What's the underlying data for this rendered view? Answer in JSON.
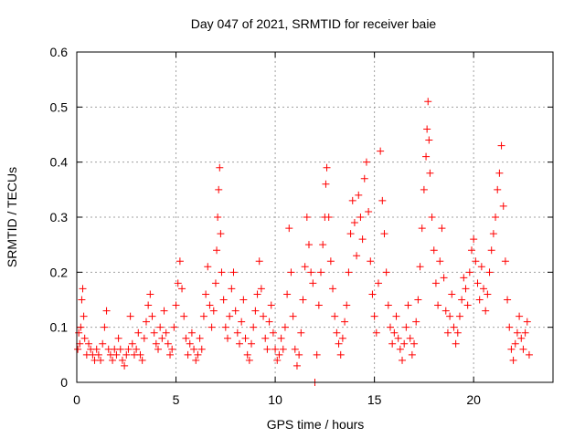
{
  "chart_data": {
    "type": "scatter",
    "title": "Day 047 of 2021, SRMTID for receiver baie",
    "xlabel": "GPS time / hours",
    "ylabel": "SRMTID / TECUs",
    "xlim": [
      0,
      24
    ],
    "ylim": [
      0,
      0.6
    ],
    "x_ticks": [
      0,
      5,
      10,
      15,
      20
    ],
    "x_tick_labels": [
      "0",
      "5",
      "10",
      "15",
      "20"
    ],
    "y_ticks": [
      0,
      0.1,
      0.2,
      0.3,
      0.4,
      0.5,
      0.6
    ],
    "y_tick_labels": [
      "0",
      "0.1",
      "0.2",
      "0.3",
      "0.4",
      "0.5",
      "0.6"
    ],
    "grid": true,
    "marker": "+",
    "series": [
      {
        "name": "SRMTID",
        "color": "#ff0000",
        "points": [
          [
            0.05,
            0.06
          ],
          [
            0.1,
            0.09
          ],
          [
            0.15,
            0.07
          ],
          [
            0.2,
            0.1
          ],
          [
            0.25,
            0.15
          ],
          [
            0.3,
            0.17
          ],
          [
            0.35,
            0.12
          ],
          [
            0.4,
            0.08
          ],
          [
            0.5,
            0.05
          ],
          [
            0.6,
            0.07
          ],
          [
            0.7,
            0.06
          ],
          [
            0.8,
            0.05
          ],
          [
            0.9,
            0.04
          ],
          [
            1.0,
            0.06
          ],
          [
            1.1,
            0.05
          ],
          [
            1.2,
            0.04
          ],
          [
            1.3,
            0.07
          ],
          [
            1.4,
            0.1
          ],
          [
            1.5,
            0.13
          ],
          [
            1.6,
            0.06
          ],
          [
            1.7,
            0.05
          ],
          [
            1.8,
            0.04
          ],
          [
            1.9,
            0.06
          ],
          [
            2.0,
            0.05
          ],
          [
            2.1,
            0.08
          ],
          [
            2.2,
            0.06
          ],
          [
            2.3,
            0.04
          ],
          [
            2.4,
            0.03
          ],
          [
            2.5,
            0.05
          ],
          [
            2.6,
            0.06
          ],
          [
            2.7,
            0.12
          ],
          [
            2.8,
            0.07
          ],
          [
            2.9,
            0.05
          ],
          [
            3.0,
            0.06
          ],
          [
            3.1,
            0.09
          ],
          [
            3.2,
            0.05
          ],
          [
            3.3,
            0.04
          ],
          [
            3.4,
            0.08
          ],
          [
            3.5,
            0.11
          ],
          [
            3.6,
            0.14
          ],
          [
            3.7,
            0.16
          ],
          [
            3.8,
            0.12
          ],
          [
            3.9,
            0.09
          ],
          [
            4.0,
            0.07
          ],
          [
            4.1,
            0.06
          ],
          [
            4.2,
            0.1
          ],
          [
            4.3,
            0.08
          ],
          [
            4.4,
            0.13
          ],
          [
            4.5,
            0.09
          ],
          [
            4.6,
            0.07
          ],
          [
            4.7,
            0.05
          ],
          [
            4.8,
            0.06
          ],
          [
            4.9,
            0.1
          ],
          [
            5.0,
            0.14
          ],
          [
            5.1,
            0.18
          ],
          [
            5.2,
            0.22
          ],
          [
            5.3,
            0.17
          ],
          [
            5.4,
            0.12
          ],
          [
            5.5,
            0.08
          ],
          [
            5.6,
            0.05
          ],
          [
            5.7,
            0.07
          ],
          [
            5.8,
            0.09
          ],
          [
            5.9,
            0.06
          ],
          [
            6.0,
            0.04
          ],
          [
            6.1,
            0.05
          ],
          [
            6.2,
            0.08
          ],
          [
            6.3,
            0.06
          ],
          [
            6.4,
            0.12
          ],
          [
            6.5,
            0.16
          ],
          [
            6.6,
            0.21
          ],
          [
            6.7,
            0.14
          ],
          [
            6.8,
            0.1
          ],
          [
            6.9,
            0.13
          ],
          [
            7.0,
            0.18
          ],
          [
            7.05,
            0.24
          ],
          [
            7.1,
            0.3
          ],
          [
            7.15,
            0.35
          ],
          [
            7.2,
            0.39
          ],
          [
            7.25,
            0.27
          ],
          [
            7.3,
            0.2
          ],
          [
            7.4,
            0.15
          ],
          [
            7.5,
            0.1
          ],
          [
            7.6,
            0.08
          ],
          [
            7.7,
            0.12
          ],
          [
            7.8,
            0.17
          ],
          [
            7.9,
            0.2
          ],
          [
            8.0,
            0.13
          ],
          [
            8.1,
            0.09
          ],
          [
            8.2,
            0.07
          ],
          [
            8.3,
            0.11
          ],
          [
            8.4,
            0.15
          ],
          [
            8.5,
            0.08
          ],
          [
            8.6,
            0.05
          ],
          [
            8.7,
            0.04
          ],
          [
            8.8,
            0.07
          ],
          [
            8.9,
            0.1
          ],
          [
            9.0,
            0.13
          ],
          [
            9.1,
            0.16
          ],
          [
            9.2,
            0.22
          ],
          [
            9.3,
            0.17
          ],
          [
            9.4,
            0.12
          ],
          [
            9.5,
            0.08
          ],
          [
            9.6,
            0.06
          ],
          [
            9.7,
            0.11
          ],
          [
            9.8,
            0.14
          ],
          [
            9.9,
            0.09
          ],
          [
            10.0,
            0.06
          ],
          [
            10.1,
            0.04
          ],
          [
            10.2,
            0.05
          ],
          [
            10.3,
            0.08
          ],
          [
            10.4,
            0.06
          ],
          [
            10.5,
            0.1
          ],
          [
            10.6,
            0.16
          ],
          [
            10.7,
            0.28
          ],
          [
            10.8,
            0.2
          ],
          [
            10.9,
            0.12
          ],
          [
            11.0,
            0.06
          ],
          [
            11.1,
            0.03
          ],
          [
            11.2,
            0.05
          ],
          [
            11.3,
            0.09
          ],
          [
            11.4,
            0.15
          ],
          [
            11.5,
            0.21
          ],
          [
            11.6,
            0.3
          ],
          [
            11.7,
            0.25
          ],
          [
            11.8,
            0.2
          ],
          [
            11.9,
            0.18
          ],
          [
            12.0,
            0.0
          ],
          [
            12.1,
            0.05
          ],
          [
            12.2,
            0.14
          ],
          [
            12.3,
            0.2
          ],
          [
            12.4,
            0.25
          ],
          [
            12.5,
            0.3
          ],
          [
            12.55,
            0.36
          ],
          [
            12.6,
            0.39
          ],
          [
            12.7,
            0.3
          ],
          [
            12.8,
            0.22
          ],
          [
            12.9,
            0.17
          ],
          [
            13.0,
            0.12
          ],
          [
            13.1,
            0.09
          ],
          [
            13.2,
            0.07
          ],
          [
            13.3,
            0.05
          ],
          [
            13.4,
            0.08
          ],
          [
            13.5,
            0.11
          ],
          [
            13.6,
            0.14
          ],
          [
            13.7,
            0.2
          ],
          [
            13.8,
            0.27
          ],
          [
            13.9,
            0.33
          ],
          [
            14.0,
            0.29
          ],
          [
            14.1,
            0.23
          ],
          [
            14.2,
            0.34
          ],
          [
            14.3,
            0.3
          ],
          [
            14.4,
            0.26
          ],
          [
            14.5,
            0.37
          ],
          [
            14.6,
            0.4
          ],
          [
            14.7,
            0.31
          ],
          [
            14.8,
            0.22
          ],
          [
            14.9,
            0.16
          ],
          [
            15.0,
            0.12
          ],
          [
            15.1,
            0.09
          ],
          [
            15.2,
            0.18
          ],
          [
            15.3,
            0.42
          ],
          [
            15.4,
            0.33
          ],
          [
            15.5,
            0.27
          ],
          [
            15.6,
            0.2
          ],
          [
            15.7,
            0.14
          ],
          [
            15.8,
            0.1
          ],
          [
            15.9,
            0.07
          ],
          [
            16.0,
            0.09
          ],
          [
            16.1,
            0.12
          ],
          [
            16.2,
            0.08
          ],
          [
            16.3,
            0.06
          ],
          [
            16.4,
            0.04
          ],
          [
            16.5,
            0.07
          ],
          [
            16.6,
            0.1
          ],
          [
            16.7,
            0.14
          ],
          [
            16.8,
            0.08
          ],
          [
            16.9,
            0.05
          ],
          [
            17.0,
            0.07
          ],
          [
            17.1,
            0.11
          ],
          [
            17.2,
            0.15
          ],
          [
            17.3,
            0.21
          ],
          [
            17.4,
            0.28
          ],
          [
            17.5,
            0.35
          ],
          [
            17.6,
            0.41
          ],
          [
            17.65,
            0.46
          ],
          [
            17.7,
            0.51
          ],
          [
            17.75,
            0.44
          ],
          [
            17.8,
            0.38
          ],
          [
            17.9,
            0.3
          ],
          [
            18.0,
            0.24
          ],
          [
            18.1,
            0.18
          ],
          [
            18.2,
            0.14
          ],
          [
            18.3,
            0.22
          ],
          [
            18.4,
            0.28
          ],
          [
            18.5,
            0.19
          ],
          [
            18.6,
            0.13
          ],
          [
            18.7,
            0.09
          ],
          [
            18.8,
            0.12
          ],
          [
            18.9,
            0.16
          ],
          [
            19.0,
            0.1
          ],
          [
            19.1,
            0.07
          ],
          [
            19.2,
            0.09
          ],
          [
            19.3,
            0.12
          ],
          [
            19.4,
            0.15
          ],
          [
            19.5,
            0.19
          ],
          [
            19.6,
            0.17
          ],
          [
            19.7,
            0.14
          ],
          [
            19.8,
            0.2
          ],
          [
            19.9,
            0.24
          ],
          [
            20.0,
            0.26
          ],
          [
            20.1,
            0.22
          ],
          [
            20.2,
            0.18
          ],
          [
            20.3,
            0.15
          ],
          [
            20.4,
            0.21
          ],
          [
            20.5,
            0.17
          ],
          [
            20.6,
            0.13
          ],
          [
            20.7,
            0.16
          ],
          [
            20.8,
            0.2
          ],
          [
            20.9,
            0.24
          ],
          [
            21.0,
            0.27
          ],
          [
            21.1,
            0.3
          ],
          [
            21.2,
            0.35
          ],
          [
            21.3,
            0.38
          ],
          [
            21.4,
            0.43
          ],
          [
            21.5,
            0.32
          ],
          [
            21.6,
            0.22
          ],
          [
            21.7,
            0.15
          ],
          [
            21.8,
            0.1
          ],
          [
            21.9,
            0.06
          ],
          [
            22.0,
            0.04
          ],
          [
            22.1,
            0.07
          ],
          [
            22.2,
            0.09
          ],
          [
            22.3,
            0.12
          ],
          [
            22.4,
            0.08
          ],
          [
            22.5,
            0.06
          ],
          [
            22.6,
            0.09
          ],
          [
            22.7,
            0.11
          ],
          [
            22.8,
            0.05
          ]
        ]
      }
    ]
  }
}
